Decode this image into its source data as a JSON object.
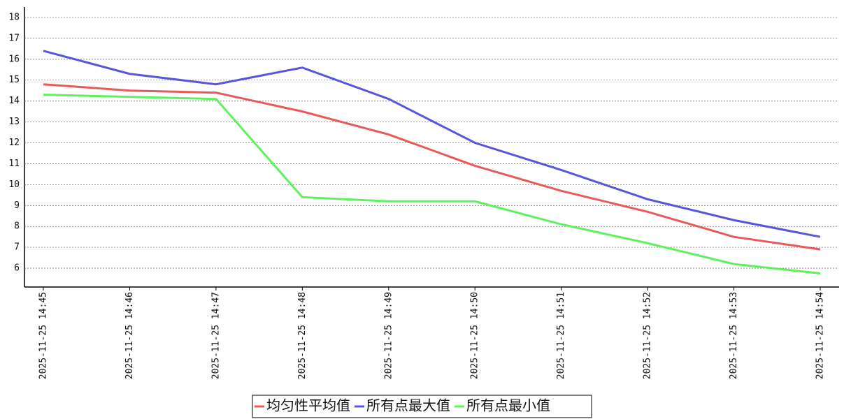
{
  "chart_data": {
    "type": "line",
    "categories": [
      "2025-11-25 14:45",
      "2025-11-25 14:46",
      "2025-11-25 14:47",
      "2025-11-25 14:48",
      "2025-11-25 14:49",
      "2025-11-25 14:50",
      "2025-11-25 14:51",
      "2025-11-25 14:52",
      "2025-11-25 14:53",
      "2025-11-25 14:54"
    ],
    "series": [
      {
        "name": "均匀性平均值",
        "color": "#e85a5a",
        "values": [
          14.8,
          14.5,
          14.4,
          13.5,
          12.4,
          10.9,
          9.7,
          8.7,
          7.5,
          6.9
        ]
      },
      {
        "name": "所有点最大值",
        "color": "#5555dd",
        "values": [
          16.4,
          15.3,
          14.8,
          15.6,
          14.1,
          12.0,
          10.7,
          9.3,
          8.3,
          7.5
        ]
      },
      {
        "name": "所有点最小值",
        "color": "#5cf25c",
        "values": [
          14.3,
          14.2,
          14.1,
          9.4,
          9.2,
          9.2,
          8.1,
          7.2,
          6.2,
          5.75
        ]
      }
    ],
    "ylim": [
      5.1,
      18.5
    ],
    "yticks": [
      6,
      7,
      8,
      9,
      10,
      11,
      12,
      13,
      14,
      15,
      16,
      17,
      18
    ],
    "grid": true
  }
}
